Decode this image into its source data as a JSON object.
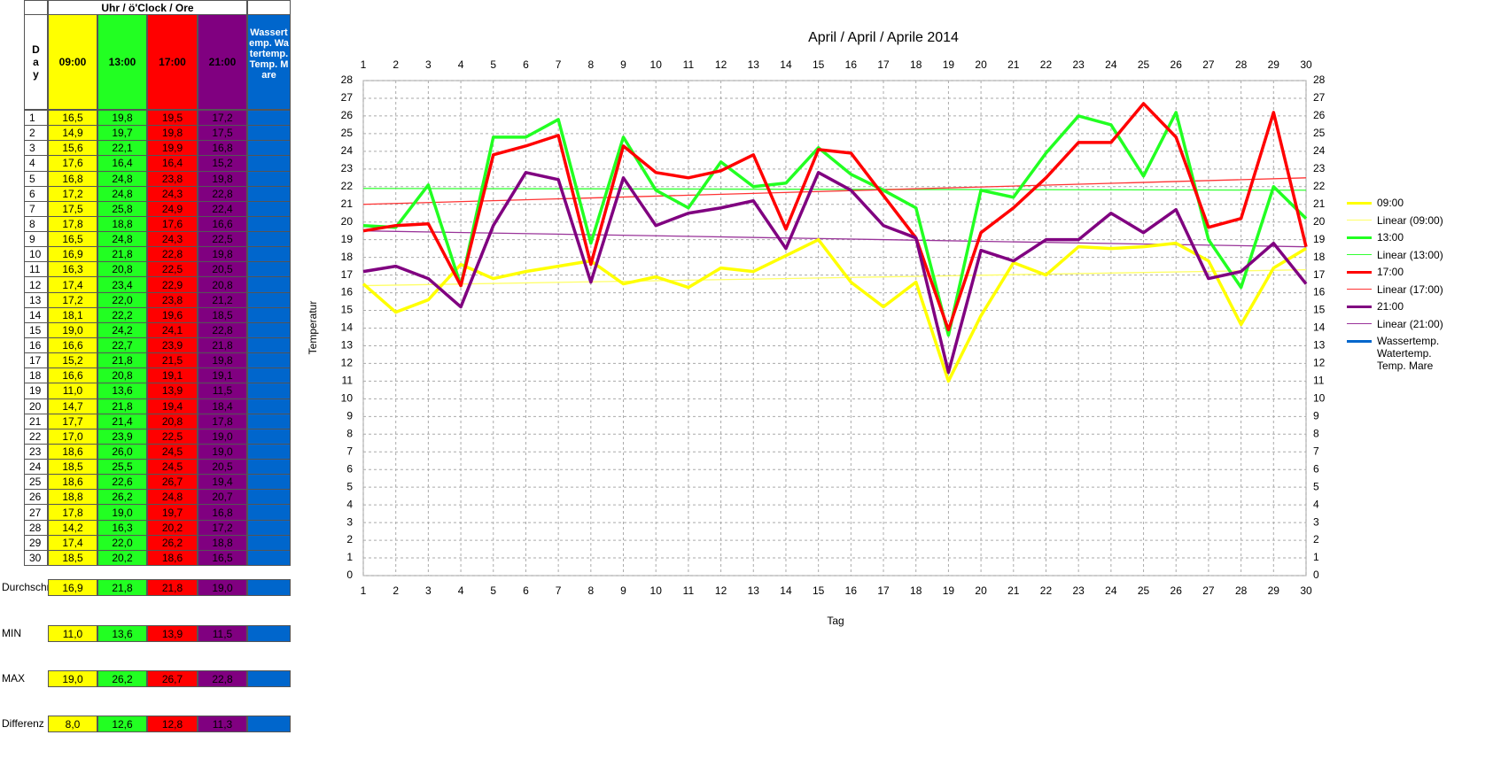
{
  "chart_data": {
    "type": "line",
    "title": "April / April / Aprile 2014",
    "xlabel": "Tag",
    "ylabel": "Temperatur",
    "x": [
      1,
      2,
      3,
      4,
      5,
      6,
      7,
      8,
      9,
      10,
      11,
      12,
      13,
      14,
      15,
      16,
      17,
      18,
      19,
      20,
      21,
      22,
      23,
      24,
      25,
      26,
      27,
      28,
      29,
      30
    ],
    "xlim": [
      1,
      30
    ],
    "xticks": [
      1,
      2,
      3,
      4,
      5,
      6,
      7,
      8,
      9,
      10,
      11,
      12,
      13,
      14,
      15,
      16,
      17,
      18,
      19,
      20,
      21,
      22,
      23,
      24,
      25,
      26,
      27,
      28,
      29,
      30
    ],
    "ylim": [
      0,
      28
    ],
    "yticks": [
      0,
      1,
      2,
      3,
      4,
      5,
      6,
      7,
      8,
      9,
      10,
      11,
      12,
      13,
      14,
      15,
      16,
      17,
      18,
      19,
      20,
      21,
      22,
      23,
      24,
      25,
      26,
      27,
      28
    ],
    "grid": true,
    "legend": "right",
    "series": [
      {
        "name": "09:00",
        "color": "#ffff00",
        "values": [
          16.5,
          14.9,
          15.6,
          17.6,
          16.8,
          17.2,
          17.5,
          17.8,
          16.5,
          16.9,
          16.3,
          17.4,
          17.2,
          18.1,
          19.0,
          16.6,
          15.2,
          16.6,
          11.0,
          14.7,
          17.7,
          17.0,
          18.6,
          18.5,
          18.6,
          18.8,
          17.8,
          14.2,
          17.4,
          18.5
        ],
        "value_labels": [
          "16,5",
          "14,9",
          "15,6",
          "17,6",
          "16,8",
          "17,2",
          "17,5",
          "17,8",
          "16,5",
          "16,9",
          "16,3",
          "17,4",
          "17,2",
          "18,1",
          "19,0",
          "16,6",
          "15,2",
          "16,6",
          "11,0",
          "14,7",
          "17,7",
          "17,0",
          "18,6",
          "18,5",
          "18,6",
          "18,8",
          "17,8",
          "14,2",
          "17,4",
          "18,5"
        ]
      },
      {
        "name": "13:00",
        "color": "#22ff22",
        "values": [
          19.8,
          19.7,
          22.1,
          16.4,
          24.8,
          24.8,
          25.8,
          18.8,
          24.8,
          21.8,
          20.8,
          23.4,
          22.0,
          22.2,
          24.2,
          22.7,
          21.8,
          20.8,
          13.6,
          21.8,
          21.4,
          23.9,
          26.0,
          25.5,
          22.6,
          26.2,
          19.0,
          16.3,
          22.0,
          20.2
        ],
        "value_labels": [
          "19,8",
          "19,7",
          "22,1",
          "16,4",
          "24,8",
          "24,8",
          "25,8",
          "18,8",
          "24,8",
          "21,8",
          "20,8",
          "23,4",
          "22,0",
          "22,2",
          "24,2",
          "22,7",
          "21,8",
          "20,8",
          "13,6",
          "21,8",
          "21,4",
          "23,9",
          "26,0",
          "25,5",
          "22,6",
          "26,2",
          "19,0",
          "16,3",
          "22,0",
          "20,2"
        ]
      },
      {
        "name": "17:00",
        "color": "#ff0000",
        "values": [
          19.5,
          19.8,
          19.9,
          16.4,
          23.8,
          24.3,
          24.9,
          17.6,
          24.3,
          22.8,
          22.5,
          22.9,
          23.8,
          19.6,
          24.1,
          23.9,
          21.5,
          19.1,
          13.9,
          19.4,
          20.8,
          22.5,
          24.5,
          24.5,
          26.7,
          24.8,
          19.7,
          20.2,
          26.2,
          18.6
        ],
        "value_labels": [
          "19,5",
          "19,8",
          "19,9",
          "16,4",
          "23,8",
          "24,3",
          "24,9",
          "17,6",
          "24,3",
          "22,8",
          "22,5",
          "22,9",
          "23,8",
          "19,6",
          "24,1",
          "23,9",
          "21,5",
          "19,1",
          "13,9",
          "19,4",
          "20,8",
          "22,5",
          "24,5",
          "24,5",
          "26,7",
          "24,8",
          "19,7",
          "20,2",
          "26,2",
          "18,6"
        ]
      },
      {
        "name": "21:00",
        "color": "#800080",
        "values": [
          17.2,
          17.5,
          16.8,
          15.2,
          19.8,
          22.8,
          22.4,
          16.6,
          22.5,
          19.8,
          20.5,
          20.8,
          21.2,
          18.5,
          22.8,
          21.8,
          19.8,
          19.1,
          11.5,
          18.4,
          17.8,
          19.0,
          19.0,
          20.5,
          19.4,
          20.7,
          16.8,
          17.2,
          18.8,
          16.5
        ],
        "value_labels": [
          "17,2",
          "17,5",
          "16,8",
          "15,2",
          "19,8",
          "22,8",
          "22,4",
          "16,6",
          "22,5",
          "19,8",
          "20,5",
          "20,8",
          "21,2",
          "18,5",
          "22,8",
          "21,8",
          "19,8",
          "19,1",
          "11,5",
          "18,4",
          "17,8",
          "19,0",
          "19,0",
          "20,5",
          "19,4",
          "20,7",
          "16,8",
          "17,2",
          "18,8",
          "16,5"
        ]
      },
      {
        "name": "Wassertemp. Watertemp. Temp. Mare",
        "color": "#0066cc",
        "values": [
          null,
          null,
          null,
          null,
          null,
          null,
          null,
          null,
          null,
          null,
          null,
          null,
          null,
          null,
          null,
          null,
          null,
          null,
          null,
          null,
          null,
          null,
          null,
          null,
          null,
          null,
          null,
          null,
          null,
          null
        ]
      }
    ],
    "trendlines": [
      {
        "name": "Linear (09:00)",
        "color": "#ffff66",
        "x": [
          1,
          30
        ],
        "values": [
          16.4,
          17.3
        ]
      },
      {
        "name": "Linear (13:00)",
        "color": "#33ff33",
        "x": [
          1,
          30
        ],
        "values": [
          21.9,
          21.8
        ]
      },
      {
        "name": "Linear (17:00)",
        "color": "#ff3333",
        "x": [
          1,
          30
        ],
        "values": [
          21.0,
          22.5
        ]
      },
      {
        "name": "Linear (21:00)",
        "color": "#993399",
        "x": [
          1,
          30
        ],
        "values": [
          19.5,
          18.6
        ]
      }
    ]
  },
  "table": {
    "group_header": "Uhr / ö'Clock / Ore",
    "day_header": "Day",
    "summary": [
      {
        "label": "Durchschni",
        "values": [
          "16,9",
          "21,8",
          "21,8",
          "19,0"
        ]
      },
      {
        "label": "MIN",
        "values": [
          "11,0",
          "13,6",
          "13,9",
          "11,5"
        ]
      },
      {
        "label": "MAX",
        "values": [
          "19,0",
          "26,2",
          "26,7",
          "22,8"
        ]
      },
      {
        "label": "Differenz",
        "values": [
          "8,0",
          "12,6",
          "12,8",
          "11,3"
        ]
      }
    ]
  }
}
